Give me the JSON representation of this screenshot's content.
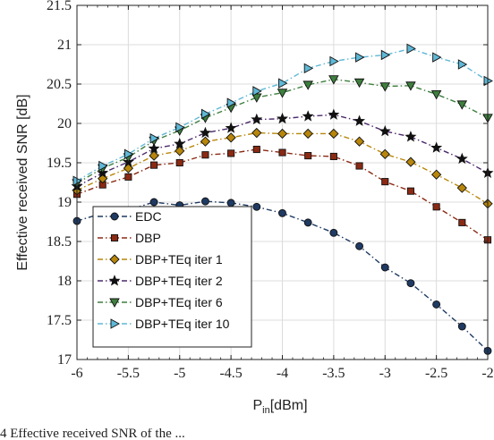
{
  "chart_data": {
    "type": "line",
    "title": "",
    "xlabel": "P",
    "xlabel_sub": "in",
    "xlabel_unit": "[dBm]",
    "ylabel": "Effective received SNR [dB]",
    "xlim": [
      -6,
      -2
    ],
    "ylim": [
      17,
      21.5
    ],
    "x_ticks": [
      "-6",
      "-5.5",
      "-5",
      "-4.5",
      "-4",
      "-3.5",
      "-3",
      "-2.5",
      "-2"
    ],
    "y_ticks": [
      "17",
      "17.5",
      "18",
      "18.5",
      "19",
      "19.5",
      "20",
      "20.5",
      "21",
      "21.5"
    ],
    "grid": true,
    "legend_position": "lower-left",
    "x": [
      -6,
      -5.75,
      -5.5,
      -5.25,
      -5,
      -4.75,
      -4.5,
      -4.25,
      -4,
      -3.75,
      -3.5,
      -3.25,
      -3,
      -2.75,
      -2.5,
      -2.25,
      -2
    ],
    "series": [
      {
        "name": "EDC",
        "color": "#1f3a63",
        "marker": "circle",
        "values": [
          18.76,
          18.86,
          18.9,
          19.0,
          18.96,
          19.01,
          18.99,
          18.94,
          18.86,
          18.74,
          18.61,
          18.44,
          18.17,
          17.97,
          17.7,
          17.42,
          17.11
        ]
      },
      {
        "name": "DBP",
        "color": "#8b2a14",
        "marker": "square",
        "values": [
          19.1,
          19.22,
          19.32,
          19.47,
          19.5,
          19.6,
          19.62,
          19.67,
          19.63,
          19.59,
          19.58,
          19.46,
          19.26,
          19.14,
          18.94,
          18.74,
          18.52
        ]
      },
      {
        "name": "DBP+TEq iter 1",
        "color": "#b8860b",
        "marker": "diamond",
        "values": [
          19.15,
          19.3,
          19.43,
          19.59,
          19.65,
          19.77,
          19.82,
          19.88,
          19.87,
          19.87,
          19.87,
          19.77,
          19.61,
          19.51,
          19.35,
          19.18,
          18.98
        ]
      },
      {
        "name": "DBP+TEq iter 2",
        "color": "#4b2a6b",
        "marker": "star",
        "values": [
          19.2,
          19.37,
          19.51,
          19.68,
          19.74,
          19.88,
          19.94,
          20.05,
          20.06,
          20.09,
          20.11,
          20.03,
          19.9,
          19.83,
          19.69,
          19.55,
          19.37
        ]
      },
      {
        "name": "DBP+TEq iter 6",
        "color": "#3e7f3e",
        "marker": "triangle-down",
        "values": [
          19.24,
          19.43,
          19.57,
          19.78,
          19.91,
          20.07,
          20.2,
          20.33,
          20.39,
          20.49,
          20.56,
          20.52,
          20.47,
          20.48,
          20.37,
          20.24,
          20.07
        ]
      },
      {
        "name": "DBP+TEq iter 10",
        "color": "#5fb8d6",
        "marker": "triangle-right",
        "values": [
          19.27,
          19.46,
          19.61,
          19.81,
          19.95,
          20.12,
          20.26,
          20.41,
          20.51,
          20.7,
          20.79,
          20.84,
          20.87,
          20.95,
          20.84,
          20.75,
          20.54
        ]
      }
    ]
  },
  "caption": {
    "text": "4 Effective received SNR of the ... "
  }
}
